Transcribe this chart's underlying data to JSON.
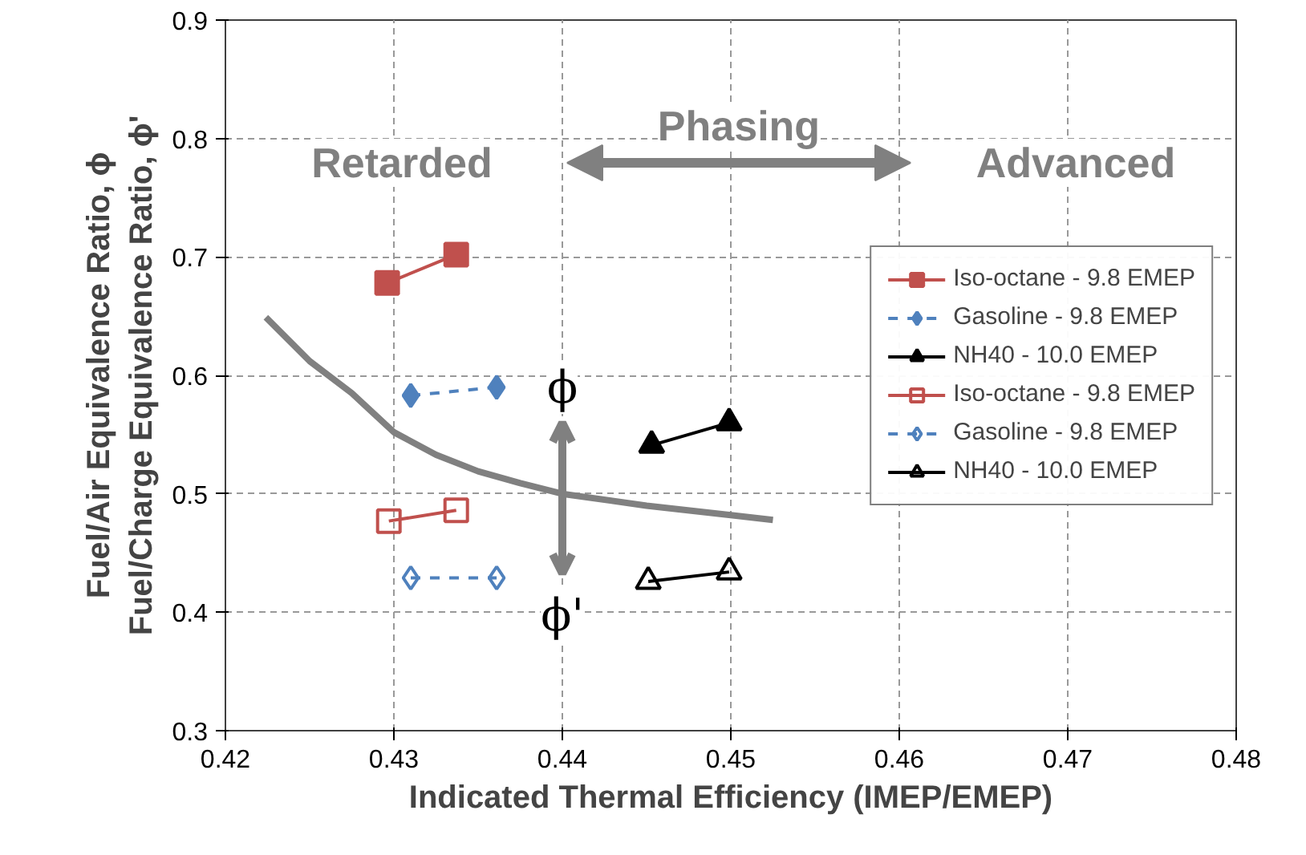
{
  "chart_data": {
    "type": "line",
    "xlabel": "Indicated Thermal Efficiency (IMEP/EMEP)",
    "ylabel": "Fuel/Air Equivalence Ratio, ϕ\nFuel/Charge Equivalence Ratio, ϕ'",
    "xlim": [
      0.42,
      0.48
    ],
    "xticks": [
      0.42,
      0.43,
      0.44,
      0.45,
      0.46,
      0.47,
      0.48
    ],
    "ylim": [
      0.3,
      0.9
    ],
    "yticks": [
      0.3,
      0.4,
      0.5,
      0.6,
      0.7,
      0.8,
      0.9
    ],
    "grid": true,
    "legend": "right",
    "series": [
      {
        "name": "Iso-octane - 9.8 EMEP",
        "color": "#c0504d",
        "x": [
          0.4296,
          0.4337
        ],
        "values": [
          0.678,
          0.702
        ],
        "marker": "square",
        "line_style": "solid"
      },
      {
        "name": "Gasoline - 9.8 EMEP",
        "color": "#4f81bd",
        "x": [
          0.431,
          0.4361
        ],
        "values": [
          0.583,
          0.59
        ],
        "marker": "diamond",
        "line_style": "dashed"
      },
      {
        "name": "NH40 - 10.0 EMEP",
        "color": "#000000",
        "x": [
          0.4453,
          0.4499
        ],
        "values": [
          0.541,
          0.56
        ],
        "marker": "triangle",
        "line_style": "solid"
      },
      {
        "name": "Iso-octane - 9.8 EMEP",
        "color": "#c0504d",
        "x": [
          0.4297,
          0.4337
        ],
        "values": [
          0.477,
          0.486
        ],
        "marker": "square",
        "line_style": "solid"
      },
      {
        "name": "Gasoline - 9.8 EMEP",
        "color": "#4f81bd",
        "x": [
          0.431,
          0.4361
        ],
        "values": [
          0.429,
          0.429
        ],
        "marker": "diamond",
        "line_style": "dashed"
      },
      {
        "name": "NH40 - 10.0 EMEP",
        "color": "#000000",
        "x": [
          0.4451,
          0.4499
        ],
        "values": [
          0.426,
          0.434
        ],
        "marker": "triangle",
        "line_style": "solid"
      },
      {
        "color": "#808080",
        "x": [
          0.4224,
          0.425,
          0.4275,
          0.43,
          0.4325,
          0.435,
          0.4375,
          0.44,
          0.445,
          0.45,
          0.4525
        ],
        "values": [
          0.649,
          0.612,
          0.585,
          0.552,
          0.533,
          0.519,
          0.509,
          0.5,
          0.49,
          0.482,
          0.478
        ],
        "marker": "none",
        "line_style": "solid"
      }
    ],
    "annotations": [
      "Retarded",
      "Phasing",
      "Advanced",
      "ϕ",
      "ϕ'"
    ]
  }
}
